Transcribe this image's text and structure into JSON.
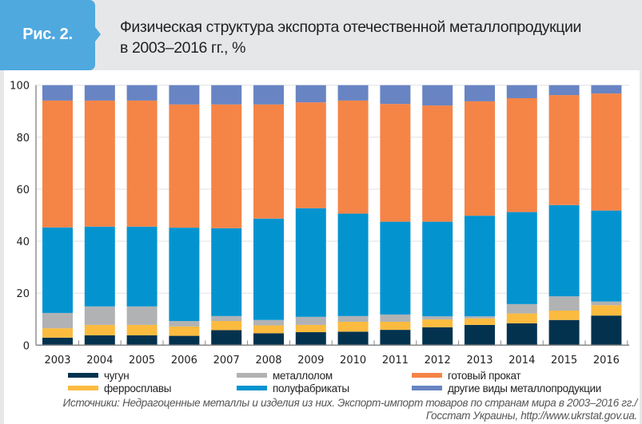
{
  "figure": {
    "label": "Рис. 2.",
    "title_line1": "Физическая структура экспорта отечественной металлопродукции",
    "title_line2": "в 2003–2016 гг., %"
  },
  "source": {
    "line1": "Источники: Недрагоценные металлы и изделия из них. Экспорт-импорт товаров по странам мира в 2003–2016 гг./",
    "line2": "Госстат Украины, http://www.ukrstat.gov.ua."
  },
  "chart_data": {
    "type": "bar",
    "stacked": true,
    "title": "Физическая структура экспорта отечественной металлопродукции в 2003–2016 гг., %",
    "xlabel": "",
    "ylabel": "",
    "ylim": [
      0,
      100
    ],
    "yticks": [
      0,
      20,
      40,
      60,
      80,
      100
    ],
    "grid": true,
    "legend_position": "bottom",
    "categories": [
      "2003",
      "2004",
      "2005",
      "2006",
      "2007",
      "2008",
      "2009",
      "2010",
      "2011",
      "2012",
      "2013",
      "2014",
      "2015",
      "2016"
    ],
    "series": [
      {
        "name": "чугун",
        "color": "#03324f",
        "values": [
          2.9,
          3.8,
          3.8,
          3.6,
          5.8,
          4.6,
          5.0,
          5.2,
          5.9,
          6.9,
          7.8,
          8.4,
          9.7,
          11.4
        ]
      },
      {
        "name": "ферросплавы",
        "color": "#fbbb3f",
        "values": [
          3.6,
          4.0,
          4.0,
          3.6,
          3.5,
          3.0,
          2.8,
          3.8,
          3.1,
          3.0,
          2.5,
          3.8,
          3.6,
          4.0
        ]
      },
      {
        "name": "металлолом",
        "color": "#b1b2b4",
        "values": [
          5.9,
          7.1,
          7.1,
          2.1,
          1.9,
          2.1,
          3.1,
          2.2,
          2.8,
          1.2,
          0.8,
          3.6,
          5.5,
          1.4
        ]
      },
      {
        "name": "полуфабрикаты",
        "color": "#0394d0",
        "values": [
          32.9,
          30.7,
          30.7,
          35.9,
          33.8,
          39.0,
          41.8,
          39.4,
          35.7,
          36.4,
          38.7,
          35.4,
          35.1,
          35.0
        ]
      },
      {
        "name": "готовый прокат",
        "color": "#f58447",
        "values": [
          48.8,
          48.5,
          48.5,
          47.4,
          47.6,
          43.9,
          40.7,
          43.5,
          45.3,
          44.7,
          44.0,
          43.8,
          42.3,
          45.0
        ]
      },
      {
        "name": "другие виды металлопродукции",
        "color": "#6884c3",
        "values": [
          5.9,
          5.9,
          5.9,
          7.4,
          7.4,
          7.4,
          6.6,
          5.9,
          7.2,
          7.8,
          6.2,
          5.0,
          3.8,
          3.2
        ]
      }
    ],
    "legend_order": [
      0,
      2,
      4,
      1,
      3,
      5
    ]
  }
}
